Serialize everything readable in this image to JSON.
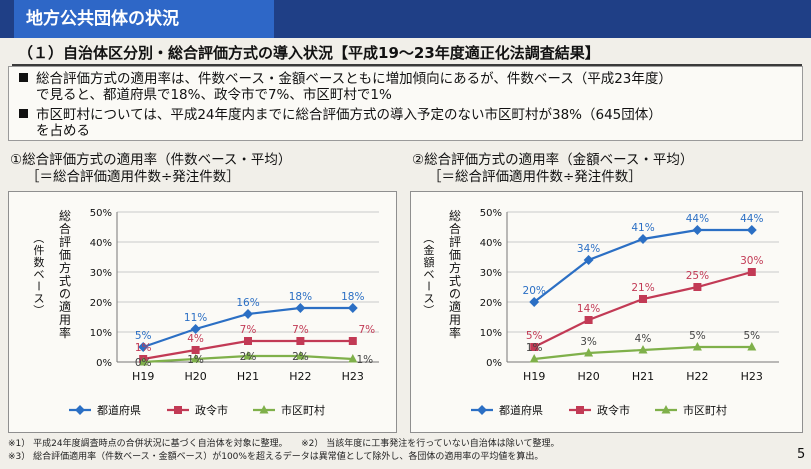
{
  "header": {
    "title": "地方公共団体の状況"
  },
  "subtitle": "（１）自治体区分別・総合評価方式の導入状況【平成19～23年度適正化法調査結果】",
  "bullets": [
    {
      "line1": "総合評価方式の適用率は、件数ベース・金額ベースともに増加傾向にあるが、件数ベース（平成23年度）",
      "line2": "で見ると、都道府県で18%、政令市で7%、市区町村で1%"
    },
    {
      "line1": "市区町村については、平成24年度内までに総合評価方式の導入予定のない市区町村が38%（645団体）",
      "line2": "を占める"
    }
  ],
  "colors": {
    "pref": "#2b6fc4",
    "city": "#c23a55",
    "muni": "#7fb04a"
  },
  "chart_data": [
    {
      "type": "line",
      "title": "①総合評価方式の適用率（件数ベース・平均）",
      "subtitle": "［＝総合評価適用件数÷発注件数］",
      "ylabel_main": "総合評価方式の適用率",
      "ylabel_paren": "（件数ベース）",
      "categories": [
        "H19",
        "H20",
        "H21",
        "H22",
        "H23"
      ],
      "ylim": [
        0,
        50
      ],
      "yticks": [
        "0%",
        "10%",
        "20%",
        "30%",
        "40%",
        "50%"
      ],
      "grid": true,
      "legend_position": "bottom",
      "series": [
        {
          "name": "都道府県",
          "values": [
            5,
            11,
            16,
            18,
            18
          ],
          "labels": [
            "5%",
            "11%",
            "16%",
            "18%",
            "18%"
          ]
        },
        {
          "name": "政令市",
          "values": [
            1,
            4,
            7,
            7,
            7
          ],
          "labels": [
            "1%",
            "4%",
            "7%",
            "7%",
            "7%"
          ]
        },
        {
          "name": "市区町村",
          "values": [
            0,
            1,
            2,
            2,
            1
          ],
          "labels": [
            "0%",
            "1%",
            "2%",
            "2%",
            "1%"
          ]
        }
      ]
    },
    {
      "type": "line",
      "title": "②総合評価方式の適用率（金額ベース・平均）",
      "subtitle": "［＝総合評価適用件数÷発注件数］",
      "ylabel_main": "総合評価方式の適用率",
      "ylabel_paren": "（金額ベース）",
      "categories": [
        "H19",
        "H20",
        "H21",
        "H22",
        "H23"
      ],
      "ylim": [
        0,
        50
      ],
      "yticks": [
        "0%",
        "10%",
        "20%",
        "30%",
        "40%",
        "50%"
      ],
      "grid": true,
      "legend_position": "bottom",
      "series": [
        {
          "name": "都道府県",
          "values": [
            20,
            34,
            41,
            44,
            44
          ],
          "labels": [
            "20%",
            "34%",
            "41%",
            "44%",
            "44%"
          ]
        },
        {
          "name": "政令市",
          "values": [
            5,
            14,
            21,
            25,
            30
          ],
          "labels": [
            "5%",
            "14%",
            "21%",
            "25%",
            "30%"
          ]
        },
        {
          "name": "市区町村",
          "values": [
            1,
            3,
            4,
            5,
            5
          ],
          "labels": [
            "1%",
            "3%",
            "4%",
            "5%",
            "5%"
          ]
        }
      ]
    }
  ],
  "footnotes": {
    "line1": "※1） 平成24年度調査時点の合併状況に基づく自治体を対象に整理。　　※2） 当該年度に工事発注を行っていない自治体は除いて整理。",
    "line2": "※3） 総合評価適用率（件数ベース・金額ベース）が100%を超えるデータは異常値として除外し、各団体の適用率の平均値を算出。"
  },
  "page_number": "5"
}
